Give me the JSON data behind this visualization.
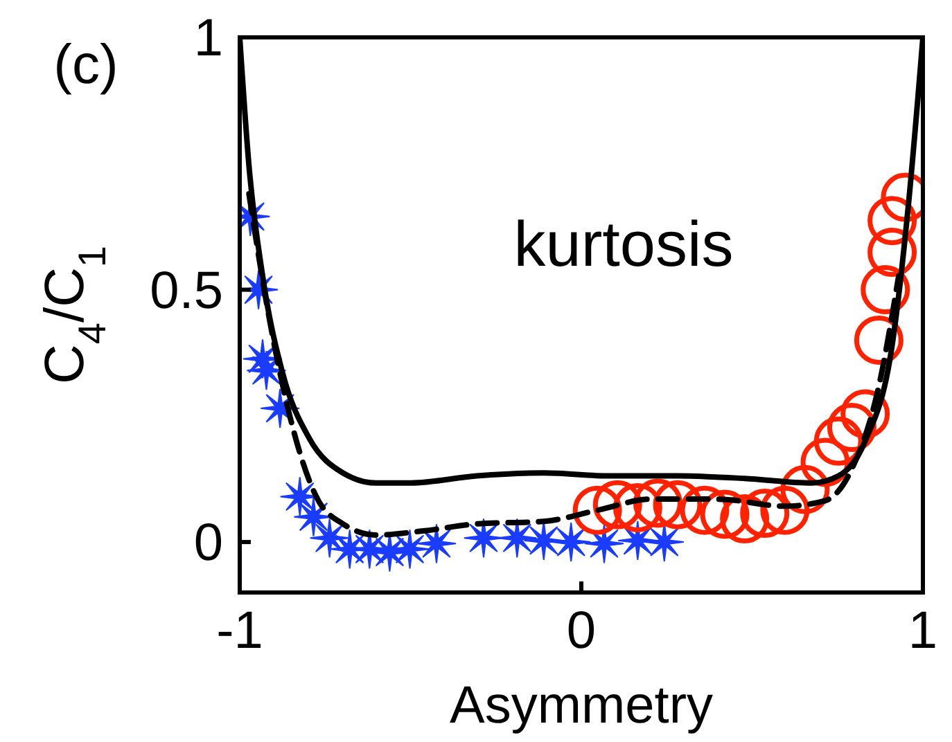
{
  "chart_data": {
    "type": "scatter",
    "xlabel": "Asymmetry",
    "ylabel": "C$_{4}$/C$_{1}$",
    "annotations": [
      "(c)",
      "kurtosis"
    ],
    "xlim": [
      -1,
      1
    ],
    "ylim": [
      -0.1,
      1
    ],
    "xticks": [
      -1,
      0,
      1
    ],
    "yticks": [
      0,
      0.5,
      1
    ],
    "grid": false,
    "series": [
      {
        "marker": "cross",
        "color": "#1a3cff",
        "x": [
          -0.969,
          -0.945,
          -0.933,
          -0.922,
          -0.882,
          -0.824,
          -0.784,
          -0.737,
          -0.678,
          -0.62,
          -0.561,
          -0.502,
          -0.424,
          -0.286,
          -0.188,
          -0.11,
          -0.03,
          0.067,
          0.165,
          0.243
        ],
        "values": [
          0.645,
          0.5,
          0.363,
          0.34,
          0.265,
          0.09,
          0.05,
          0.008,
          -0.014,
          -0.014,
          -0.02,
          -0.014,
          -0.003,
          0.008,
          0.008,
          0.003,
          0,
          -0.003,
          0.003,
          0
        ]
      },
      {
        "marker": "circle",
        "color": "#ff2200",
        "x": [
          0.047,
          0.106,
          0.165,
          0.224,
          0.282,
          0.361,
          0.42,
          0.478,
          0.537,
          0.596,
          0.655,
          0.714,
          0.753,
          0.792,
          0.831,
          0.871,
          0.89,
          0.91,
          0.91,
          0.949
        ],
        "values": [
          0.063,
          0.074,
          0.068,
          0.077,
          0.074,
          0.063,
          0.055,
          0.046,
          0.057,
          0.063,
          0.104,
          0.158,
          0.2,
          0.227,
          0.254,
          0.4,
          0.5,
          0.574,
          0.637,
          0.683
        ]
      },
      {
        "type": "line",
        "marker": "none",
        "line_style": "solid",
        "color": "#000000",
        "x": [
          -1,
          -0.973,
          -0.933,
          -0.875,
          -0.796,
          -0.698,
          -0.6,
          -0.5,
          -0.306,
          -0.11,
          0.086,
          0.282,
          0.478,
          0.675,
          0.753,
          0.831,
          0.91,
          0.957,
          1
        ],
        "values": [
          1,
          0.746,
          0.527,
          0.336,
          0.205,
          0.137,
          0.117,
          0.117,
          0.131,
          0.137,
          0.131,
          0.131,
          0.126,
          0.117,
          0.131,
          0.2,
          0.39,
          0.664,
          1
        ]
      },
      {
        "type": "line",
        "marker": "none",
        "line_style": "dashed",
        "color": "#000000",
        "x": [
          -0.973,
          -0.914,
          -0.855,
          -0.776,
          -0.698,
          -0.6,
          -0.463,
          -0.306,
          -0.11,
          0.047,
          0.204,
          0.4,
          0.596,
          0.714,
          0.792,
          0.871,
          0.929
        ],
        "values": [
          0.69,
          0.445,
          0.254,
          0.09,
          0.036,
          0.014,
          0.022,
          0.036,
          0.041,
          0.063,
          0.085,
          0.085,
          0.071,
          0.082,
          0.145,
          0.309,
          0.527
        ]
      }
    ]
  }
}
